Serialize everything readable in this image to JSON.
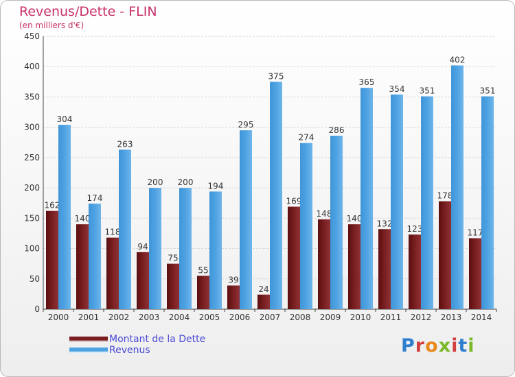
{
  "title": "Revenus/Dette - FLIN",
  "subtitle": "(en milliers d'€)",
  "logo_text": "Proxiti",
  "colors": {
    "dette": "#7a1f21",
    "revenus": "#4fa3e3",
    "title": "#c8306a",
    "legend_text": "#4a4ad6"
  },
  "legend": [
    {
      "label": "Montant de la Dette",
      "color": "#7a1f21"
    },
    {
      "label": "Revenus",
      "color": "#4fa3e3"
    }
  ],
  "chart_data": {
    "type": "bar",
    "title": "Revenus/Dette - FLIN",
    "subtitle": "(en milliers d'€)",
    "categories": [
      "2000",
      "2001",
      "2002",
      "2003",
      "2004",
      "2005",
      "2006",
      "2007",
      "2008",
      "2009",
      "2010",
      "2011",
      "2012",
      "2013",
      "2014"
    ],
    "series": [
      {
        "name": "Montant de la Dette",
        "values": [
          162,
          140,
          118,
          94,
          75,
          55,
          39,
          24,
          169,
          148,
          140,
          132,
          123,
          178,
          117
        ]
      },
      {
        "name": "Revenus",
        "values": [
          304,
          174,
          263,
          200,
          200,
          194,
          295,
          375,
          274,
          286,
          365,
          354,
          351,
          402,
          351
        ]
      }
    ],
    "yticks": [
      0,
      50,
      100,
      150,
      200,
      250,
      300,
      350,
      400,
      450
    ],
    "ylim": [
      0,
      450
    ],
    "grid": true,
    "legend_position": "bottom-left"
  }
}
